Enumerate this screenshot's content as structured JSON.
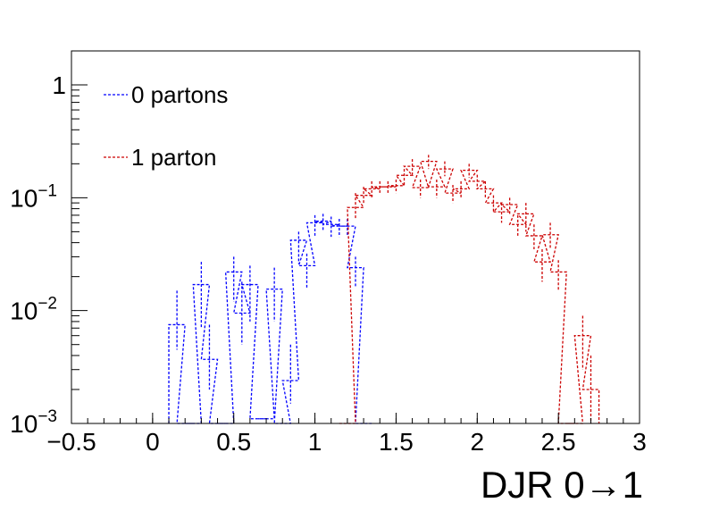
{
  "chart_data": {
    "type": "line",
    "xlabel": "DJR 0→1",
    "ylabel": "",
    "xlim": [
      -0.5,
      3.0
    ],
    "ylim": [
      0.001,
      2.0
    ],
    "log_y": true,
    "grid": false,
    "bin_width": 0.1,
    "legend_placement": "top-left",
    "x_ticks": [
      {
        "value": -0.5,
        "label": "−0.5"
      },
      {
        "value": 0,
        "label": "0"
      },
      {
        "value": 0.5,
        "label": "0.5"
      },
      {
        "value": 1,
        "label": "1"
      },
      {
        "value": 1.5,
        "label": "1.5"
      },
      {
        "value": 2,
        "label": "2"
      },
      {
        "value": 2.5,
        "label": "2.5"
      },
      {
        "value": 3,
        "label": "3"
      }
    ],
    "y_ticks": [
      {
        "value": 0.001,
        "base": "10",
        "exp": "−3"
      },
      {
        "value": 0.01,
        "base": "10",
        "exp": "−2"
      },
      {
        "value": 0.1,
        "base": "10",
        "exp": "−1"
      },
      {
        "value": 1,
        "base": "1",
        "exp": ""
      }
    ],
    "series": [
      {
        "name": "0 partons",
        "color": "#0000ff",
        "style": "dashed",
        "bins": [
          {
            "x": 0.15,
            "y": 0.0075,
            "err_low": 0.0045,
            "err_high": 0.015
          },
          {
            "x": 0.2,
            "y": 0.0008
          },
          {
            "x": 0.25,
            "y": 0.0008
          },
          {
            "x": 0.3,
            "y": 0.017,
            "err_low": 0.007,
            "err_high": 0.027
          },
          {
            "x": 0.35,
            "y": 0.0037,
            "err_low": 0.002,
            "err_high": 0.0075
          },
          {
            "x": 0.4,
            "y": 0.0008
          },
          {
            "x": 0.45,
            "y": 0.0008
          },
          {
            "x": 0.5,
            "y": 0.022,
            "err_low": 0.012,
            "err_high": 0.03
          },
          {
            "x": 0.55,
            "y": 0.0095,
            "err_low": 0.005,
            "err_high": 0.018
          },
          {
            "x": 0.6,
            "y": 0.017,
            "err_low": 0.008,
            "err_high": 0.025
          },
          {
            "x": 0.65,
            "y": 0.0011
          },
          {
            "x": 0.7,
            "y": 0.0011
          },
          {
            "x": 0.75,
            "y": 0.0155,
            "err_low": 0.008,
            "err_high": 0.024
          },
          {
            "x": 0.8,
            "y": 0.0008
          },
          {
            "x": 0.85,
            "y": 0.0024,
            "err_low": 0.0015,
            "err_high": 0.005
          },
          {
            "x": 0.9,
            "y": 0.042,
            "err_low": 0.026,
            "err_high": 0.05
          },
          {
            "x": 0.95,
            "y": 0.025,
            "err_low": 0.016,
            "err_high": 0.032
          },
          {
            "x": 1.0,
            "y": 0.06,
            "err_low": 0.045,
            "err_high": 0.07
          },
          {
            "x": 1.05,
            "y": 0.062,
            "err_low": 0.05,
            "err_high": 0.072
          },
          {
            "x": 1.1,
            "y": 0.058,
            "err_low": 0.045,
            "err_high": 0.068
          },
          {
            "x": 1.15,
            "y": 0.056,
            "err_low": 0.045,
            "err_high": 0.065
          },
          {
            "x": 1.2,
            "y": 0.056,
            "err_low": 0.045,
            "err_high": 0.065
          },
          {
            "x": 1.25,
            "y": 0.024,
            "err_low": 0.016,
            "err_high": 0.03
          },
          {
            "x": 1.3,
            "y": 0.0008
          }
        ]
      },
      {
        "name": "1 parton",
        "color": "#cc0000",
        "style": "dashed",
        "bins": [
          {
            "x": 1.2,
            "y": 0.0008
          },
          {
            "x": 1.25,
            "y": 0.082,
            "err_low": 0.065,
            "err_high": 0.11
          },
          {
            "x": 1.3,
            "y": 0.105,
            "err_low": 0.09,
            "err_high": 0.125
          },
          {
            "x": 1.35,
            "y": 0.12,
            "err_low": 0.1,
            "err_high": 0.14
          },
          {
            "x": 1.4,
            "y": 0.125,
            "err_low": 0.11,
            "err_high": 0.14
          },
          {
            "x": 1.45,
            "y": 0.125,
            "err_low": 0.11,
            "err_high": 0.14
          },
          {
            "x": 1.5,
            "y": 0.128,
            "err_low": 0.11,
            "err_high": 0.145
          },
          {
            "x": 1.55,
            "y": 0.158,
            "err_low": 0.13,
            "err_high": 0.18
          },
          {
            "x": 1.6,
            "y": 0.19,
            "err_low": 0.16,
            "err_high": 0.22
          },
          {
            "x": 1.65,
            "y": 0.123,
            "err_low": 0.1,
            "err_high": 0.145
          },
          {
            "x": 1.7,
            "y": 0.21,
            "err_low": 0.18,
            "err_high": 0.24
          },
          {
            "x": 1.75,
            "y": 0.125,
            "err_low": 0.1,
            "err_high": 0.145
          },
          {
            "x": 1.8,
            "y": 0.18,
            "err_low": 0.155,
            "err_high": 0.21
          },
          {
            "x": 1.85,
            "y": 0.11,
            "err_low": 0.09,
            "err_high": 0.13
          },
          {
            "x": 1.9,
            "y": 0.12,
            "err_low": 0.1,
            "err_high": 0.14
          },
          {
            "x": 1.95,
            "y": 0.175,
            "err_low": 0.15,
            "err_high": 0.2
          },
          {
            "x": 2.0,
            "y": 0.14,
            "err_low": 0.12,
            "err_high": 0.16
          },
          {
            "x": 2.05,
            "y": 0.12,
            "err_low": 0.1,
            "err_high": 0.14
          },
          {
            "x": 2.1,
            "y": 0.09,
            "err_low": 0.075,
            "err_high": 0.105
          },
          {
            "x": 2.15,
            "y": 0.075,
            "err_low": 0.06,
            "err_high": 0.09
          },
          {
            "x": 2.2,
            "y": 0.087,
            "err_low": 0.07,
            "err_high": 0.1
          },
          {
            "x": 2.25,
            "y": 0.058,
            "err_low": 0.045,
            "err_high": 0.07
          },
          {
            "x": 2.3,
            "y": 0.072,
            "err_low": 0.05,
            "err_high": 0.09
          },
          {
            "x": 2.35,
            "y": 0.046,
            "err_low": 0.035,
            "err_high": 0.058
          },
          {
            "x": 2.4,
            "y": 0.027,
            "err_low": 0.018,
            "err_high": 0.035
          },
          {
            "x": 2.45,
            "y": 0.047,
            "err_low": 0.035,
            "err_high": 0.06
          },
          {
            "x": 2.5,
            "y": 0.022,
            "err_low": 0.015,
            "err_high": 0.028
          },
          {
            "x": 2.55,
            "y": 0.0008
          },
          {
            "x": 2.6,
            "y": 0.0008
          },
          {
            "x": 2.65,
            "y": 0.006,
            "err_low": 0.003,
            "err_high": 0.009
          },
          {
            "x": 2.7,
            "y": 0.002,
            "err_low": 0.001,
            "err_high": 0.004
          }
        ]
      }
    ],
    "annotations": []
  }
}
